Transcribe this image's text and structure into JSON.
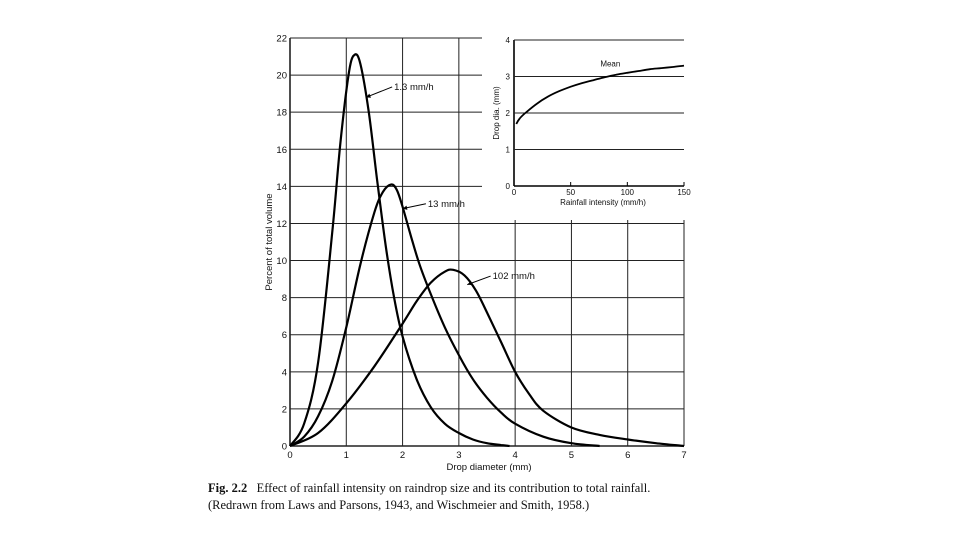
{
  "chart_data": [
    {
      "type": "line",
      "title": "",
      "xlabel": "Drop diameter (mm)",
      "ylabel": "Percent of total volume",
      "xlim": [
        0,
        7
      ],
      "ylim": [
        0,
        22
      ],
      "xticks": [
        "0",
        "1",
        "2",
        "3",
        "4",
        "5",
        "6",
        "7"
      ],
      "yticks": [
        "0",
        "2",
        "4",
        "6",
        "8",
        "10",
        "12",
        "14",
        "16",
        "18",
        "20",
        "22"
      ],
      "grid": true,
      "series": [
        {
          "name": "1.3 mm/h",
          "x": [
            0,
            0.25,
            0.5,
            0.75,
            0.9,
            1.05,
            1.15,
            1.25,
            1.4,
            1.55,
            1.7,
            1.85,
            2.0,
            2.25,
            2.5,
            2.75,
            3.0,
            3.25,
            3.5,
            3.75,
            3.9
          ],
          "y": [
            0,
            1.2,
            4.5,
            11.5,
            16.5,
            20.2,
            21.1,
            20.6,
            18.0,
            14.3,
            10.8,
            8.0,
            5.9,
            3.6,
            2.1,
            1.2,
            0.7,
            0.35,
            0.15,
            0.05,
            0
          ]
        },
        {
          "name": "13 mm/h",
          "x": [
            0,
            0.25,
            0.5,
            0.75,
            1.0,
            1.25,
            1.5,
            1.65,
            1.8,
            1.9,
            2.0,
            2.15,
            2.3,
            2.5,
            2.75,
            3.0,
            3.25,
            3.5,
            3.75,
            4.0,
            4.5,
            5.0,
            5.5
          ],
          "y": [
            0,
            0.5,
            1.6,
            3.5,
            6.4,
            9.8,
            12.6,
            13.7,
            14.1,
            13.8,
            12.9,
            11.3,
            9.8,
            8.2,
            6.4,
            4.9,
            3.6,
            2.6,
            1.8,
            1.2,
            0.5,
            0.15,
            0
          ]
        },
        {
          "name": "102 mm/h",
          "x": [
            0,
            0.5,
            1.0,
            1.5,
            2.0,
            2.25,
            2.5,
            2.75,
            2.9,
            3.1,
            3.3,
            3.5,
            3.75,
            4.0,
            4.25,
            4.5,
            5.0,
            5.5,
            6.0,
            6.5,
            7.0
          ],
          "y": [
            0,
            0.7,
            2.3,
            4.3,
            6.6,
            7.8,
            8.8,
            9.4,
            9.5,
            9.2,
            8.4,
            7.2,
            5.6,
            4.0,
            2.8,
            1.9,
            1.0,
            0.6,
            0.35,
            0.15,
            0
          ]
        }
      ],
      "annotations": [
        "1.3 mm/h",
        "13 mm/h",
        "102 mm/h"
      ],
      "inset": {
        "type": "line",
        "xlabel": "Rainfall intensity (mm/h)",
        "ylabel": "Drop dia. (mm)",
        "xlim": [
          0,
          150
        ],
        "ylim": [
          0,
          4
        ],
        "xticks": [
          "0",
          "50",
          "100",
          "150"
        ],
        "yticks": [
          "0",
          "1",
          "2",
          "3",
          "4"
        ],
        "series": [
          {
            "name": "Mean",
            "x": [
              2,
              5,
              10,
              20,
              30,
              40,
              50,
              60,
              70,
              80,
              90,
              100,
              110,
              120,
              130,
              140,
              150
            ],
            "y": [
              1.7,
              1.85,
              2.0,
              2.25,
              2.45,
              2.6,
              2.72,
              2.82,
              2.9,
              2.98,
              3.05,
              3.1,
              3.15,
              3.2,
              3.23,
              3.26,
              3.3
            ]
          }
        ],
        "label": "Mean"
      }
    }
  ],
  "caption": {
    "figure_number": "Fig. 2.2",
    "line1": "Effect of rainfall intensity on raindrop size and its contribution to total rainfall.",
    "line2": "(Redrawn from Laws and Parsons, 1943, and Wischmeier and Smith, 1958.)"
  }
}
